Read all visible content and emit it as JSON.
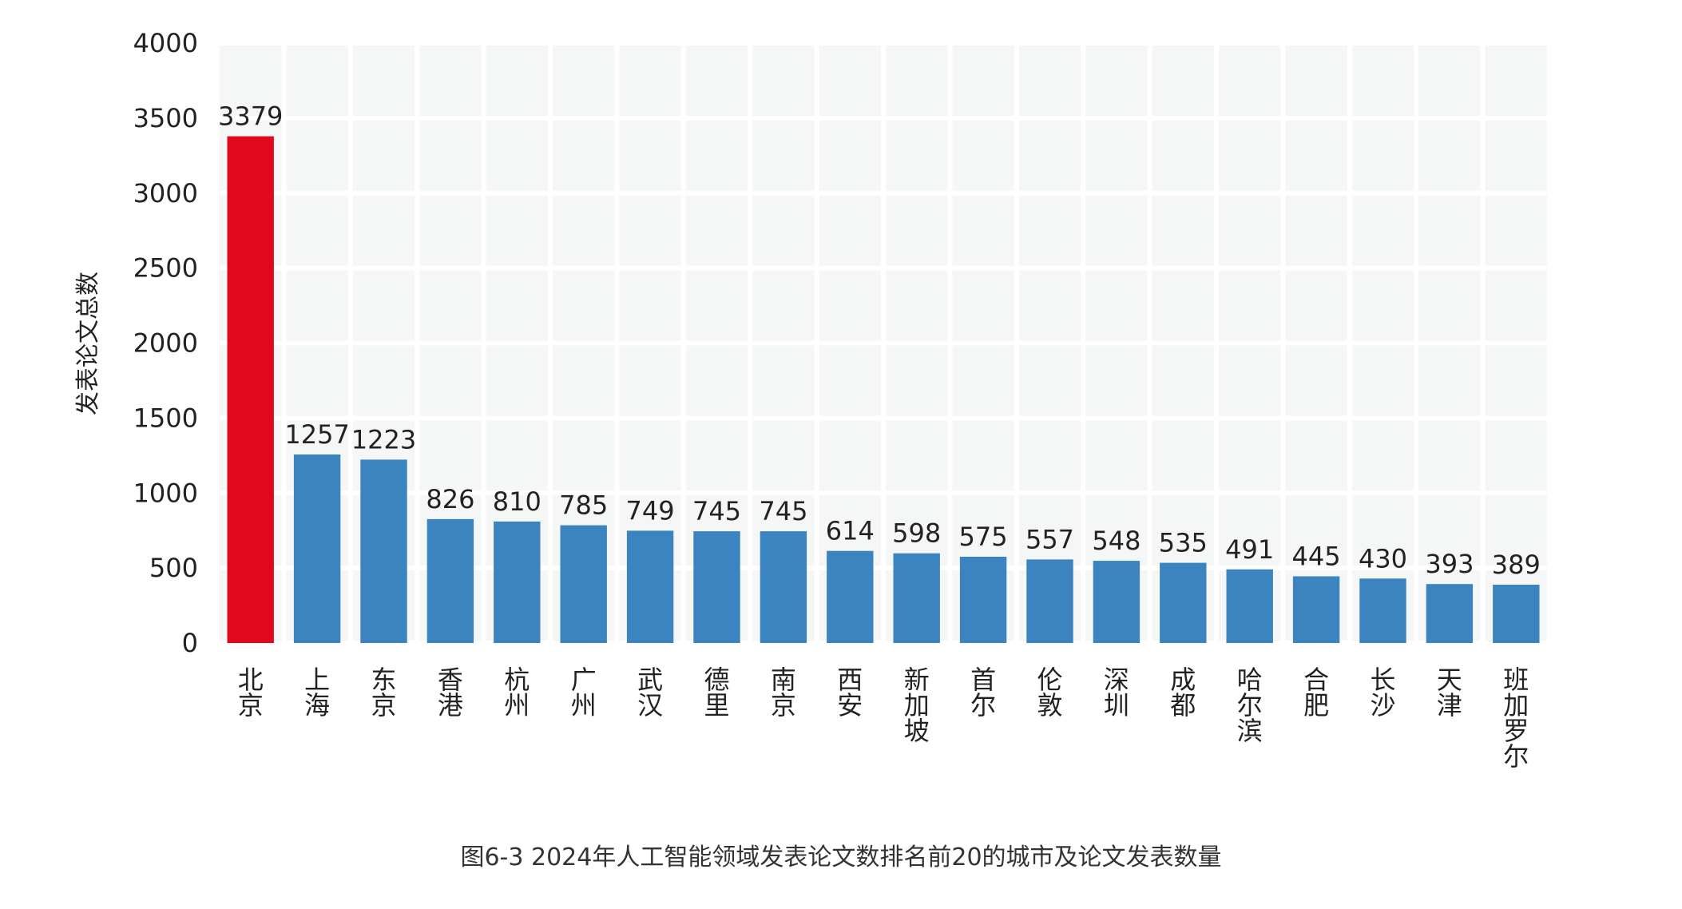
{
  "chart_data": {
    "type": "bar",
    "title": "",
    "xlabel": "",
    "ylabel": "发表论文总数",
    "ylim": [
      0,
      4000
    ],
    "yticks": [
      0,
      500,
      1000,
      1500,
      2000,
      2500,
      3000,
      3500,
      4000
    ],
    "grid": true,
    "categories": [
      "北京",
      "上海",
      "东京",
      "香港",
      "杭州",
      "广州",
      "武汉",
      "德里",
      "南京",
      "西安",
      "新加坡",
      "首尔",
      "伦敦",
      "深圳",
      "成都",
      "哈尔滨",
      "合肥",
      "长沙",
      "天津",
      "班加罗尔"
    ],
    "values": [
      3379,
      1257,
      1223,
      826,
      810,
      785,
      749,
      745,
      745,
      614,
      598,
      575,
      557,
      548,
      535,
      491,
      445,
      430,
      393,
      389
    ],
    "highlight_index": 0,
    "colors": {
      "highlight": "#e0081a",
      "bar": "#3b84bf",
      "plot_bg": "#f5f6f6",
      "grid": "#ffffff"
    }
  },
  "caption": "图6-3 2024年人工智能领域发表论文数排名前20的城市及论文发表数量"
}
